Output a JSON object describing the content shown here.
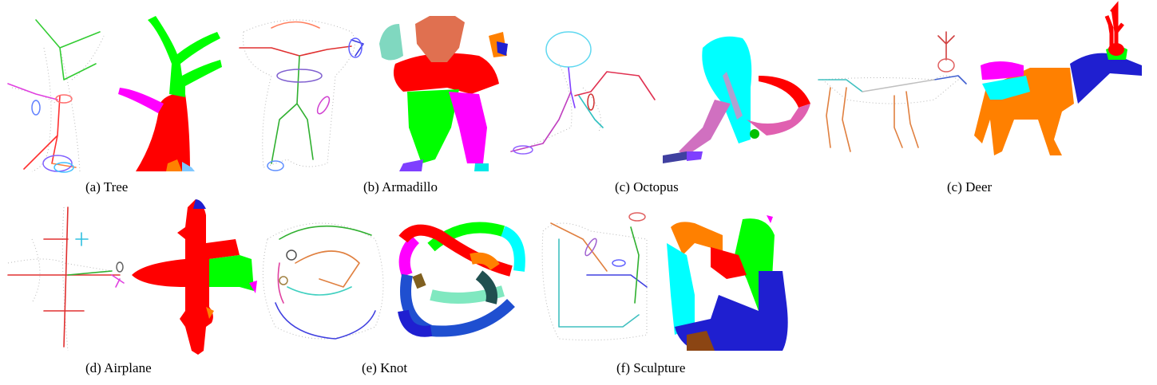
{
  "figure": {
    "captions": {
      "tree": "(a) Tree",
      "armadillo": "(b) Armadillo",
      "octopus": "(c) Octopus",
      "deer": "(c) Deer",
      "airplane": "(d) Airplane",
      "knot": "(e) Knot",
      "sculpture": "(f) Sculpture"
    },
    "colors": {
      "red": "#ff0000",
      "green": "#00ff00",
      "blue": "#0000e6",
      "cyan": "#00ffff",
      "magenta": "#ff00ff",
      "orange": "#ff8000",
      "purple": "#7f3fff",
      "teal": "#80d8c0",
      "brown": "#8b4513",
      "pink": "#d070c0"
    }
  }
}
